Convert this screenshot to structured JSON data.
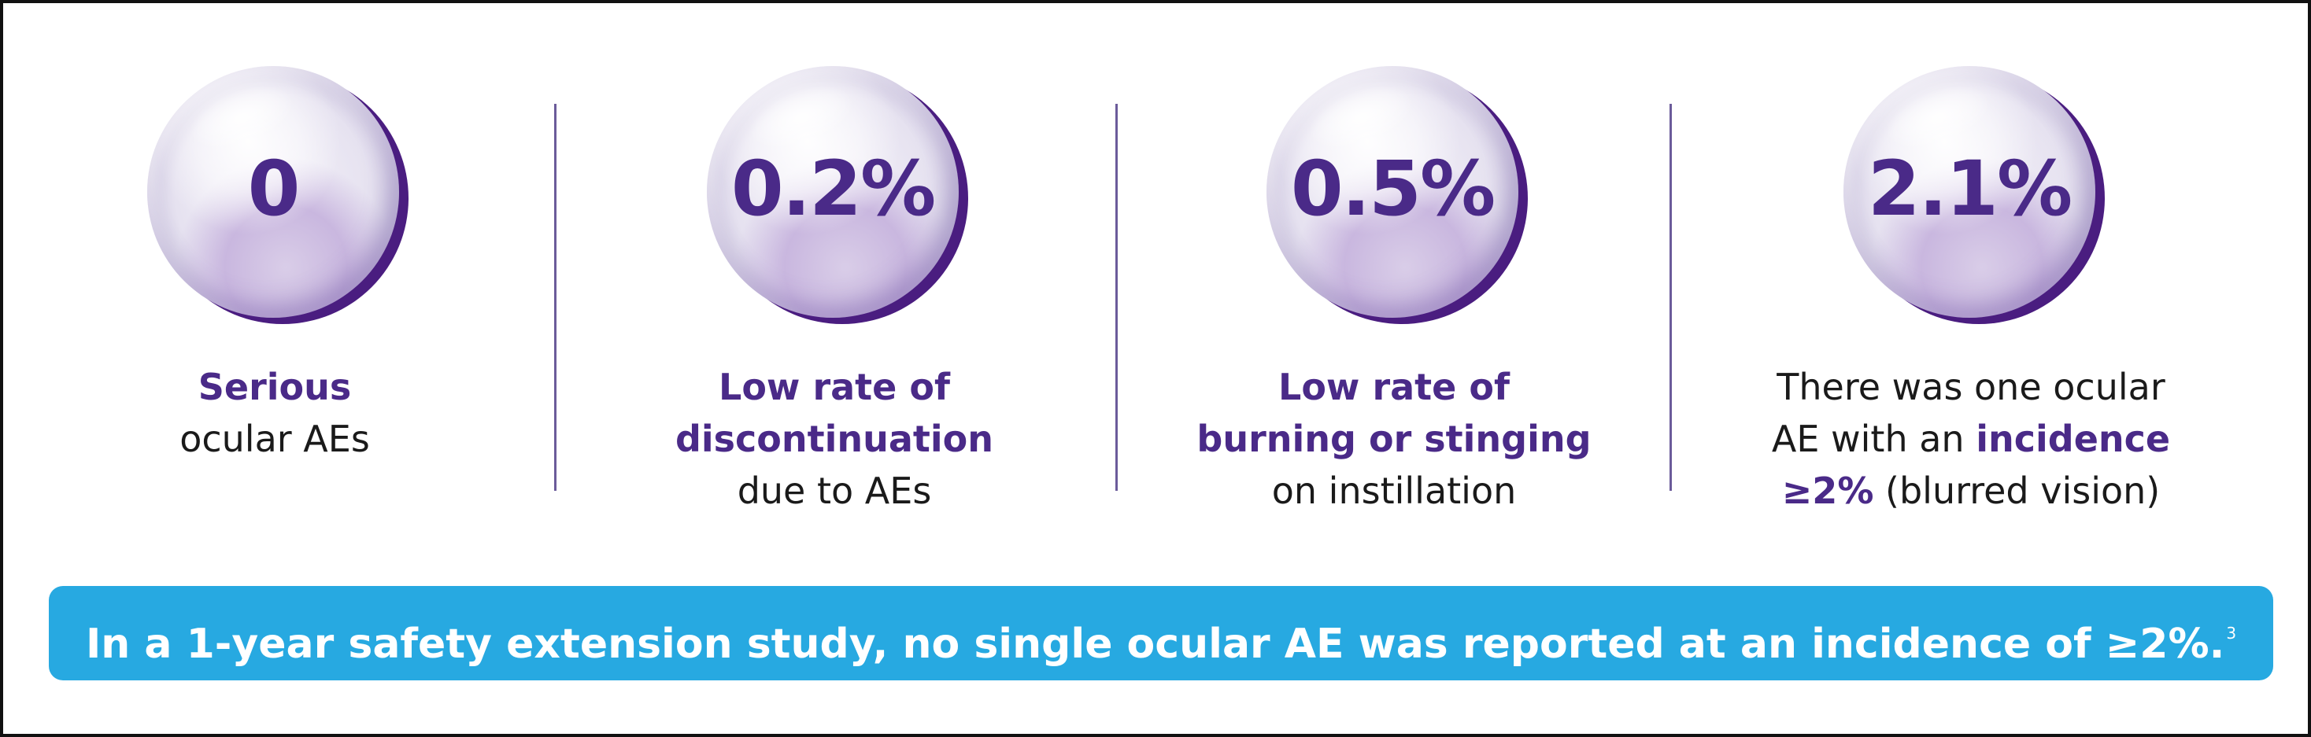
{
  "stats": [
    {
      "value": "0",
      "caption": [
        {
          "text": "Serious",
          "emphasis": true
        },
        {
          "text": "ocular AEs",
          "emphasis": false
        }
      ]
    },
    {
      "value": "0.2%",
      "caption": [
        {
          "text": "Low rate of",
          "emphasis": true
        },
        {
          "text": "discontinuation",
          "emphasis": true
        },
        {
          "text": "due to AEs",
          "emphasis": false
        }
      ]
    },
    {
      "value": "0.5%",
      "caption": [
        {
          "text": "Low rate of",
          "emphasis": true
        },
        {
          "text": "burning or stinging",
          "emphasis": true
        },
        {
          "text": "on instillation",
          "emphasis": false
        }
      ]
    },
    {
      "value": "2.1%",
      "caption_line1": "There was one ocular",
      "caption_line2_a": "AE with an ",
      "caption_line2_b": "incidence",
      "caption_line3_a": "≥2%",
      "caption_line3_b": " (blurred vision)"
    }
  ],
  "banner": {
    "text": "In a 1-year safety extension study, no single ocular AE was reported at an incidence of ≥2%.",
    "footnote": "3"
  },
  "colors": {
    "accent_purple": "#4a2a88",
    "banner_blue": "#27a9e1",
    "text": "#1a1a1a"
  }
}
